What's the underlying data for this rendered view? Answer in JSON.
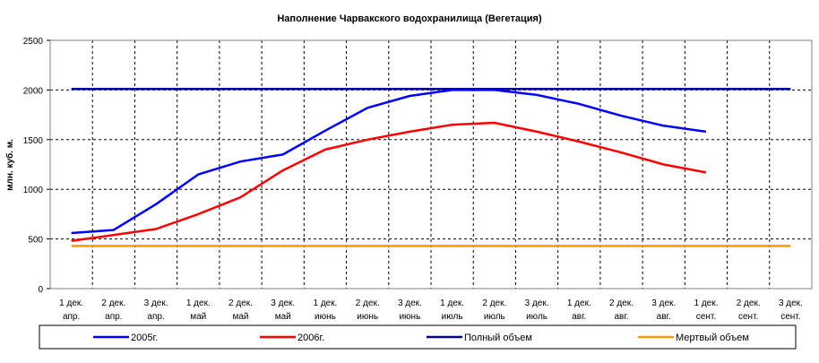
{
  "chart_data": {
    "type": "line",
    "title": "Наполнение Чарвакского водохранилища  (Вегетация)",
    "ylabel": "млн. куб. м.",
    "xlabel": "",
    "ylim": [
      0,
      2500
    ],
    "yticks": [
      "0",
      "500",
      "1000",
      "1500",
      "2000",
      "2500"
    ],
    "grid": true,
    "legend_position": "bottom",
    "categories": [
      [
        "1 дек.",
        "апр."
      ],
      [
        "2 дек.",
        "апр."
      ],
      [
        "3 дек.",
        "апр."
      ],
      [
        "1 дек.",
        "май"
      ],
      [
        "2 дек.",
        "май"
      ],
      [
        "3 дек.",
        "май"
      ],
      [
        "1 дек.",
        "июнь"
      ],
      [
        "2 дек.",
        "июнь"
      ],
      [
        "3 дек.",
        "июнь"
      ],
      [
        "1 дек.",
        "июль"
      ],
      [
        "2 дек.",
        "июль"
      ],
      [
        "3 дек.",
        "июль"
      ],
      [
        "1 дек.",
        "авг."
      ],
      [
        "2 дек.",
        "авг."
      ],
      [
        "3 дек.",
        "авг."
      ],
      [
        "1 дек.",
        "сент."
      ],
      [
        "2 дек.",
        "сент."
      ],
      [
        "3 дек.",
        "сент."
      ]
    ],
    "series": [
      {
        "name": "2005г.",
        "color": "#0000ff",
        "values": [
          560,
          590,
          850,
          1150,
          1280,
          1350,
          1590,
          1820,
          1940,
          2000,
          2000,
          1950,
          1860,
          1740,
          1640,
          1580,
          null,
          null
        ]
      },
      {
        "name": "2006г.",
        "color": "#ff0000",
        "values": [
          480,
          540,
          600,
          750,
          920,
          1190,
          1400,
          1500,
          1580,
          1650,
          1670,
          1580,
          1480,
          1370,
          1250,
          1170,
          null,
          null
        ]
      },
      {
        "name": "Полный объем",
        "color": "#000099",
        "values": [
          2010,
          2010,
          2010,
          2010,
          2010,
          2010,
          2010,
          2010,
          2010,
          2010,
          2010,
          2010,
          2010,
          2010,
          2010,
          2010,
          2010,
          2010
        ]
      },
      {
        "name": "Мертвый объем",
        "color": "#ff9900",
        "values": [
          430,
          430,
          430,
          430,
          430,
          430,
          430,
          430,
          430,
          430,
          430,
          430,
          430,
          430,
          430,
          430,
          430,
          430
        ]
      }
    ]
  }
}
